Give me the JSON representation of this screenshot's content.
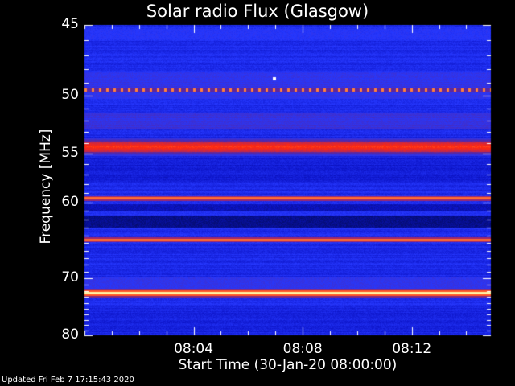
{
  "chart_data": {
    "type": "heatmap",
    "title": "Solar radio Flux (Glasgow)",
    "xlabel": "Start Time (30-Jan-20 08:00:00)",
    "ylabel": "Frequency [MHz]",
    "x_ticks": [
      {
        "t": 4,
        "label": "08:04"
      },
      {
        "t": 8,
        "label": "08:08"
      },
      {
        "t": 12,
        "label": "08:12"
      }
    ],
    "xlim": [
      0,
      14.9
    ],
    "x_units": "minutes after 08:00",
    "y_ticks": [
      45,
      50,
      55,
      60,
      70,
      80
    ],
    "ylim": [
      45,
      80
    ],
    "y_scale": "reciprocal",
    "colormap": [
      "#000a3c",
      "#101ad2",
      "#2a3cff",
      "#4a2aa8",
      "#a02868",
      "#ff2a10",
      "#ff7a38",
      "#fff7a0"
    ],
    "interference_bands": [
      {
        "freq_mhz": 49.5,
        "intensity": "dotted orange"
      },
      {
        "freq_mhz": 54.3,
        "intensity": "strong red"
      },
      {
        "freq_mhz": 59.5,
        "intensity": "orange line"
      },
      {
        "freq_mhz": 64.5,
        "intensity": "orange line"
      },
      {
        "freq_mhz": 72.3,
        "intensity": "bright yellow-white"
      }
    ]
  },
  "footer": {
    "updated": "Updated Fri Feb  7 17:15:43 2020"
  }
}
